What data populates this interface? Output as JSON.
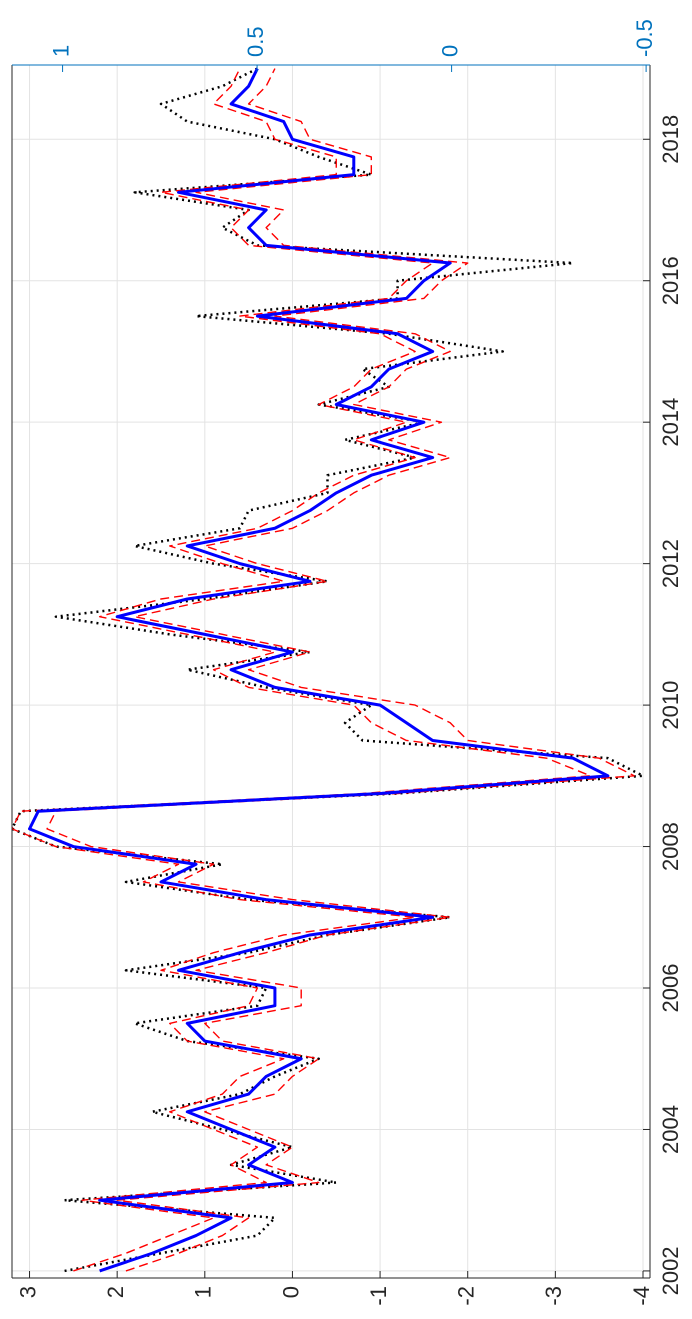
{
  "chart_data": {
    "type": "line",
    "x": [
      2002.0,
      2002.25,
      2002.5,
      2002.75,
      2003.0,
      2003.25,
      2003.5,
      2003.75,
      2004.0,
      2004.25,
      2004.5,
      2004.75,
      2005.0,
      2005.25,
      2005.5,
      2005.75,
      2006.0,
      2006.25,
      2006.5,
      2006.75,
      2007.0,
      2007.25,
      2007.5,
      2007.75,
      2008.0,
      2008.25,
      2008.5,
      2008.75,
      2009.0,
      2009.25,
      2009.5,
      2009.75,
      2010.0,
      2010.25,
      2010.5,
      2010.75,
      2011.0,
      2011.25,
      2011.5,
      2011.75,
      2012.0,
      2012.25,
      2012.5,
      2012.75,
      2013.0,
      2013.25,
      2013.5,
      2013.75,
      2014.0,
      2014.25,
      2014.5,
      2014.75,
      2015.0,
      2015.25,
      2015.5,
      2015.75,
      2016.0,
      2016.25,
      2016.5,
      2016.75,
      2017.0,
      2017.25,
      2017.5,
      2017.75,
      2018.0,
      2018.25,
      2018.5,
      2018.75,
      2019.0
    ],
    "series": [
      {
        "color": "#000000",
        "linestyle": "dotted",
        "values": [
          2.6,
          1.5,
          0.4,
          0.2,
          2.6,
          -0.5,
          0.7,
          0.0,
          0.8,
          1.6,
          0.6,
          0.2,
          -0.3,
          1.2,
          1.8,
          0.4,
          0.3,
          1.9,
          0.5,
          -0.4,
          -1.8,
          0.5,
          1.9,
          0.8,
          2.7,
          3.2,
          3.1,
          -1.2,
          -4.0,
          -3.6,
          -0.8,
          -0.6,
          -0.9,
          0.3,
          1.2,
          -0.2,
          1.4,
          2.7,
          1.0,
          -0.4,
          0.9,
          1.8,
          0.6,
          0.5,
          -0.4,
          -0.4,
          -1.4,
          -0.6,
          -1.5,
          -0.3,
          -1.1,
          -0.8,
          -2.4,
          -1.1,
          1.1,
          -1.2,
          -1.2,
          -3.2,
          0.4,
          0.8,
          0.5,
          1.8,
          -0.9,
          -0.3,
          0.2,
          1.2,
          1.5,
          0.8,
          0.4
        ]
      },
      {
        "color": "#ff0000",
        "linestyle": "dashed",
        "values": [
          2.5,
          1.9,
          1.4,
          0.9,
          2.4,
          0.3,
          0.7,
          0.4,
          0.9,
          1.4,
          0.8,
          0.6,
          0.1,
          1.2,
          1.4,
          0.5,
          0.4,
          1.5,
          0.9,
          0.1,
          -1.4,
          0.6,
          1.7,
          1.3,
          2.7,
          3.2,
          3.1,
          -0.8,
          -3.4,
          -2.9,
          -1.3,
          -0.9,
          -0.7,
          0.5,
          0.9,
          0.2,
          1.2,
          2.2,
          1.5,
          0.1,
          0.8,
          1.4,
          0.4,
          0.0,
          -0.3,
          -0.7,
          -1.4,
          -0.7,
          -1.3,
          -0.3,
          -0.7,
          -0.9,
          -1.4,
          -1.0,
          0.6,
          -1.1,
          -1.3,
          -1.6,
          0.5,
          0.7,
          0.5,
          1.5,
          -0.5,
          -0.5,
          0.2,
          0.3,
          0.9,
          0.7,
          0.6
        ]
      },
      {
        "color": "#ff0000",
        "linestyle": "dashed",
        "values": [
          1.9,
          1.3,
          0.8,
          0.5,
          2.0,
          -0.3,
          0.3,
          0.0,
          0.5,
          1.0,
          0.2,
          0.0,
          -0.3,
          0.8,
          1.0,
          -0.1,
          -0.1,
          1.1,
          0.3,
          -0.4,
          -1.8,
          0.0,
          1.3,
          0.9,
          2.3,
          2.8,
          2.7,
          -1.2,
          -3.9,
          -3.5,
          -2.0,
          -1.8,
          -1.4,
          -0.1,
          0.5,
          -0.2,
          0.8,
          1.8,
          0.9,
          -0.4,
          0.4,
          1.0,
          0.0,
          -0.4,
          -0.7,
          -1.1,
          -1.8,
          -1.1,
          -1.7,
          -0.7,
          -1.1,
          -1.3,
          -1.8,
          -1.4,
          0.2,
          -1.5,
          -1.7,
          -2.0,
          0.1,
          0.3,
          0.1,
          1.1,
          -0.9,
          -0.9,
          -0.2,
          -0.1,
          0.5,
          0.3,
          0.2
        ]
      },
      {
        "color": "#0000ff",
        "linestyle": "solid",
        "values": [
          2.2,
          1.6,
          1.1,
          0.7,
          2.2,
          0.0,
          0.5,
          0.2,
          0.7,
          1.2,
          0.5,
          0.3,
          -0.1,
          1.0,
          1.2,
          0.2,
          0.2,
          1.3,
          0.6,
          -0.2,
          -1.6,
          0.3,
          1.5,
          1.1,
          2.5,
          3.0,
          2.9,
          -1.0,
          -3.6,
          -3.2,
          -1.6,
          -1.3,
          -1.0,
          0.2,
          0.7,
          0.0,
          1.0,
          2.0,
          1.2,
          -0.2,
          0.6,
          1.2,
          0.2,
          -0.2,
          -0.5,
          -0.9,
          -1.6,
          -0.9,
          -1.5,
          -0.5,
          -0.9,
          -1.1,
          -1.6,
          -1.2,
          0.4,
          -1.3,
          -1.5,
          -1.8,
          0.3,
          0.5,
          0.3,
          1.3,
          -0.7,
          -0.7,
          0.0,
          0.1,
          0.7,
          0.5,
          0.4
        ]
      }
    ],
    "xlim": [
      2001.9,
      2019.05
    ],
    "xticks": [
      2002,
      2004,
      2006,
      2008,
      2010,
      2012,
      2014,
      2016,
      2018
    ],
    "ylim": [
      -4.08,
      3.2
    ],
    "yticks": [
      -4,
      -3,
      -2,
      -1,
      0,
      1,
      2,
      3
    ],
    "y2lim": [
      -0.51,
      1.13
    ],
    "y2ticks": [
      -0.5,
      0,
      0.5,
      1
    ],
    "y2color": "#0072bd",
    "grid": true
  }
}
